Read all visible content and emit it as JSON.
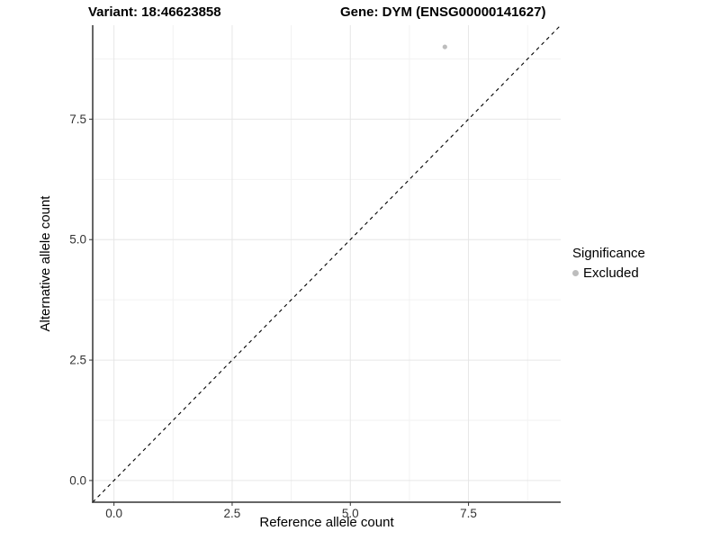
{
  "chart_data": {
    "type": "scatter",
    "title_left": "Variant: 18:46623858",
    "title_right": "Gene: DYM (ENSG00000141627)",
    "xlabel": "Reference allele count",
    "ylabel": "Alternative allele count",
    "xlim": [
      -0.45,
      9.45
    ],
    "ylim": [
      -0.45,
      9.45
    ],
    "x_ticks": [
      0.0,
      2.5,
      5.0,
      7.5
    ],
    "y_ticks": [
      0.0,
      2.5,
      5.0,
      7.5
    ],
    "x_tick_labels": [
      "0.0",
      "2.5",
      "5.0",
      "7.5"
    ],
    "y_tick_labels": [
      "0.0",
      "2.5",
      "5.0",
      "7.5"
    ],
    "minor_ticks": [
      1.25,
      3.75,
      6.25,
      8.75
    ],
    "grid": true,
    "series": [
      {
        "name": "Excluded",
        "color": "#bdbdbd",
        "points": [
          {
            "x": 7,
            "y": 9
          }
        ]
      }
    ],
    "reference_line": {
      "type": "identity",
      "style": "dashed",
      "color": "#000000"
    },
    "legend": {
      "title": "Significance",
      "position": "right",
      "entries": [
        {
          "label": "Excluded",
          "color": "#bdbdbd"
        }
      ]
    },
    "colors": {
      "major_grid": "#e6e6e6",
      "minor_grid": "#f2f2f2",
      "axis_line": "#333333",
      "tick_text": "#333333"
    }
  }
}
